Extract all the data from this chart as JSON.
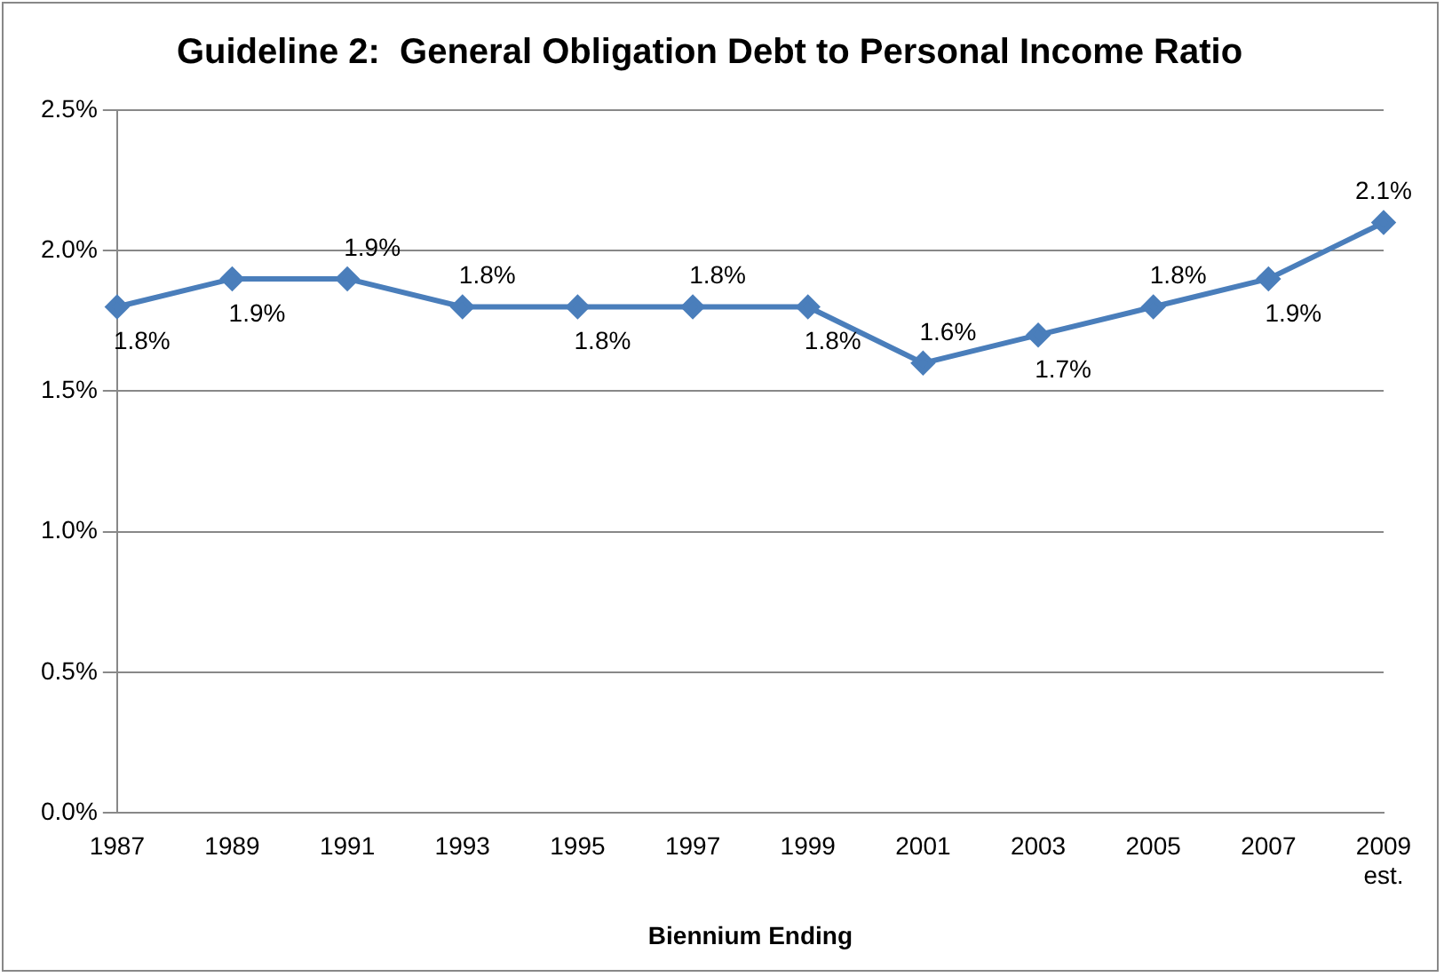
{
  "chart_data": {
    "type": "line",
    "title": "Guideline 2:  General Obligation Debt to Personal Income Ratio",
    "xlabel": "Biennium Ending",
    "categories": [
      "1987",
      "1989",
      "1991",
      "1993",
      "1995",
      "1997",
      "1999",
      "2001",
      "2003",
      "2005",
      "2007",
      "2009\nest."
    ],
    "series": [
      {
        "color": "#4a7ebb",
        "values": [
          1.8,
          1.9,
          1.9,
          1.8,
          1.8,
          1.8,
          1.8,
          1.6,
          1.7,
          1.8,
          1.9,
          2.1
        ],
        "value_labels": [
          "1.8%",
          "1.9%",
          "1.9%",
          "1.8%",
          "1.8%",
          "1.8%",
          "1.8%",
          "1.6%",
          "1.7%",
          "1.8%",
          "1.9%",
          "2.1%"
        ]
      }
    ],
    "ylim": [
      0,
      2.5
    ],
    "yticks": [
      {
        "value": 0,
        "label": "0.0%"
      },
      {
        "value": 0.5,
        "label": "0.5%"
      },
      {
        "value": 1,
        "label": "1.0%"
      },
      {
        "value": 1.5,
        "label": "1.5%"
      },
      {
        "value": 2,
        "label": "2.0%"
      },
      {
        "value": 2.5,
        "label": "2.5%"
      }
    ],
    "grid": "y",
    "legend": false,
    "marker": "diamond",
    "line_style": "solid"
  }
}
